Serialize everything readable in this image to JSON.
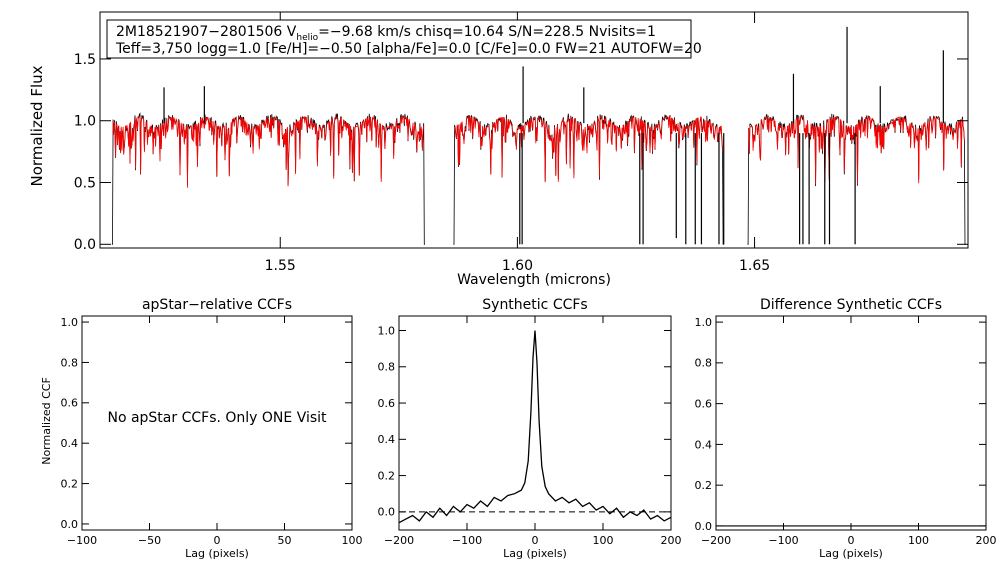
{
  "chart_data": [
    {
      "type": "line",
      "panel": "spectrum",
      "ylabel": "Normalized Flux",
      "xlabel": "Wavelength (microns)",
      "xlim": [
        1.512,
        1.695
      ],
      "ylim": [
        -0.03,
        1.88
      ],
      "xticks": [
        1.55,
        1.6,
        1.65
      ],
      "xtick_labels": [
        "1.55",
        "1.60",
        "1.65"
      ],
      "yticks": [
        0.0,
        0.5,
        1.0,
        1.5
      ],
      "ytick_labels": [
        "0.0",
        "0.5",
        "1.0",
        "1.5"
      ],
      "chips": [
        [
          1.5145,
          1.5805
        ],
        [
          1.5865,
          1.6435
        ],
        [
          1.6485,
          1.6945
        ]
      ],
      "annotation": {
        "line1_prefix": "2M18521907−2801506  V",
        "line1_sub": "helio",
        "line1_suffix": "=−9.68 km/s  chisq=10.64  S/N=228.5  Nvisits=1",
        "line2": "Teff=3,750 logg=1.0 [Fe/H]=−0.50 [alpha/Fe]=0.0 [C/Fe]=0.0 FW=21 AUTOFW=20"
      },
      "series": [
        {
          "name": "observed",
          "color": "#000000"
        },
        {
          "name": "model",
          "color": "#ff0000"
        }
      ],
      "emission_spikes": [
        [
          1.5255,
          1.27
        ],
        [
          1.534,
          1.28
        ],
        [
          1.6012,
          1.44
        ],
        [
          1.614,
          1.27
        ],
        [
          1.6582,
          1.38
        ],
        [
          1.6695,
          1.76
        ],
        [
          1.6765,
          1.28
        ],
        [
          1.6898,
          1.57
        ]
      ],
      "deep_absorptions": [
        [
          1.6005,
          0.0
        ],
        [
          1.601,
          0.0
        ],
        [
          1.6258,
          0.0
        ],
        [
          1.6265,
          0.0
        ],
        [
          1.6335,
          0.05
        ],
        [
          1.6355,
          0.0
        ],
        [
          1.6375,
          0.0
        ],
        [
          1.6388,
          0.0
        ],
        [
          1.6425,
          0.0
        ],
        [
          1.6435,
          0.0
        ],
        [
          1.6595,
          0.0
        ],
        [
          1.6602,
          0.0
        ],
        [
          1.6615,
          0.0
        ],
        [
          1.6648,
          0.0
        ],
        [
          1.6658,
          0.0
        ],
        [
          1.6712,
          0.0
        ]
      ]
    },
    {
      "type": "line",
      "panel": "apstar",
      "title": "apStar−relative CCFs",
      "xlabel": "Lag (pixels)",
      "ylabel": "Normalized CCF",
      "xlim": [
        -100,
        100
      ],
      "ylim": [
        -0.03,
        1.03
      ],
      "xticks": [
        -100,
        -50,
        0,
        50,
        100
      ],
      "xtick_labels": [
        "−100",
        "−50",
        "0",
        "50",
        "100"
      ],
      "yticks": [
        0.0,
        0.2,
        0.4,
        0.6,
        0.8,
        1.0
      ],
      "ytick_labels": [
        "0.0",
        "0.2",
        "0.4",
        "0.6",
        "0.8",
        "1.0"
      ],
      "message": "No apStar CCFs.  Only ONE Visit",
      "series": []
    },
    {
      "type": "line",
      "panel": "synthetic",
      "title": "Synthetic CCFs",
      "xlabel": "Lag (pixels)",
      "xlim": [
        -200,
        200
      ],
      "ylim": [
        -0.1,
        1.08
      ],
      "xticks": [
        -200,
        -100,
        0,
        100,
        200
      ],
      "xtick_labels": [
        "−200",
        "−100",
        "0",
        "100",
        "200"
      ],
      "yticks": [
        0.0,
        0.2,
        0.4,
        0.6,
        0.8,
        1.0
      ],
      "ytick_labels": [
        "0.0",
        "0.2",
        "0.4",
        "0.6",
        "0.8",
        "1.0"
      ],
      "zero_line": 0.0,
      "series": [
        {
          "name": "ccf",
          "x": [
            -200,
            -190,
            -180,
            -170,
            -160,
            -150,
            -140,
            -130,
            -120,
            -110,
            -100,
            -90,
            -80,
            -70,
            -60,
            -50,
            -40,
            -30,
            -20,
            -15,
            -10,
            -6,
            -3,
            0,
            3,
            6,
            10,
            15,
            20,
            30,
            40,
            50,
            60,
            70,
            80,
            90,
            100,
            110,
            120,
            130,
            140,
            150,
            160,
            170,
            180,
            190,
            200
          ],
          "y": [
            -0.06,
            -0.04,
            -0.02,
            -0.05,
            0.0,
            -0.03,
            0.02,
            -0.02,
            0.03,
            0.0,
            0.04,
            0.02,
            0.06,
            0.03,
            0.08,
            0.06,
            0.09,
            0.1,
            0.12,
            0.16,
            0.28,
            0.55,
            0.85,
            1.0,
            0.82,
            0.5,
            0.25,
            0.14,
            0.1,
            0.06,
            0.08,
            0.05,
            0.07,
            0.03,
            0.05,
            0.01,
            0.03,
            -0.01,
            0.02,
            -0.03,
            0.0,
            -0.02,
            0.01,
            -0.04,
            -0.02,
            -0.05,
            -0.03
          ]
        }
      ]
    },
    {
      "type": "line",
      "panel": "difference",
      "title": "Difference Synthetic CCFs",
      "xlabel": "Lag (pixels)",
      "xlim": [
        -200,
        200
      ],
      "ylim": [
        -0.02,
        1.03
      ],
      "xticks": [
        -200,
        -100,
        0,
        100,
        200
      ],
      "xtick_labels": [
        "−200",
        "−100",
        "0",
        "100",
        "200"
      ],
      "yticks": [
        0.0,
        0.2,
        0.4,
        0.6,
        0.8,
        1.0
      ],
      "ytick_labels": [
        "0.0",
        "0.2",
        "0.4",
        "0.6",
        "0.8",
        "1.0"
      ],
      "series": [
        {
          "name": "difference",
          "x": [
            -200,
            200
          ],
          "y": [
            0.0,
            0.0
          ]
        }
      ]
    }
  ]
}
